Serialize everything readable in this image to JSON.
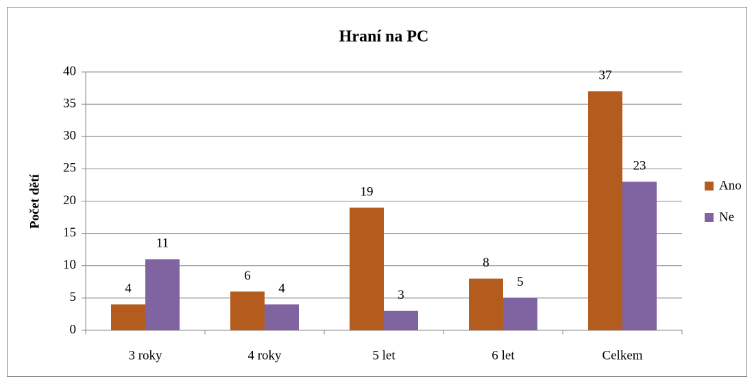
{
  "chart_data": {
    "type": "bar",
    "title": "Hraní na PC",
    "y_label": "Počet dětí",
    "categories": [
      "3 roky",
      "4 roky",
      "5 let",
      "6 let",
      "Celkem"
    ],
    "series": [
      {
        "name": "Ano",
        "color": "#b35c1e",
        "values": [
          4,
          6,
          19,
          8,
          37
        ]
      },
      {
        "name": "Ne",
        "color": "#8064a2",
        "values": [
          11,
          4,
          3,
          5,
          23
        ]
      }
    ],
    "ylim": [
      0,
      40
    ],
    "yticks": [
      0,
      5,
      10,
      15,
      20,
      25,
      30,
      35,
      40
    ],
    "grid": true,
    "legend": "right",
    "data_labels": true
  }
}
